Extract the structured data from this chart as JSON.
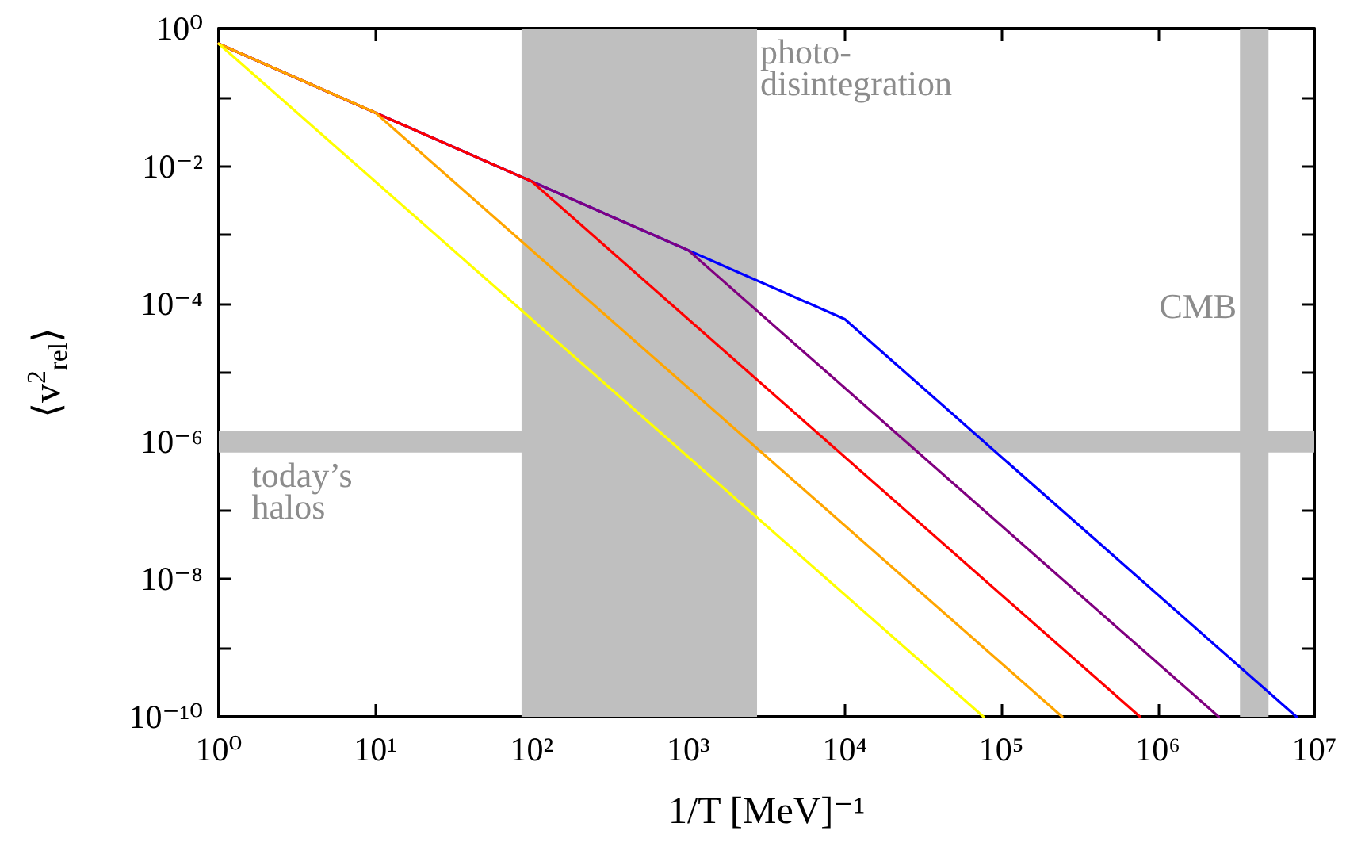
{
  "chart_data": {
    "type": "line",
    "xlabel": "1/T [MeV]⁻¹",
    "ylabel": "⟨v$^{2}$$_{rel}$⟩",
    "log": "xy",
    "grid": false,
    "marker": "none",
    "line_style": "solid",
    "xlim": [
      1,
      10000000
    ],
    "ylim": [
      1e-10,
      1
    ],
    "xticks": [
      {
        "value": 1,
        "label": "10⁰"
      },
      {
        "value": 10,
        "label": "10¹"
      },
      {
        "value": 100,
        "label": "10²"
      },
      {
        "value": 1000,
        "label": "10³"
      },
      {
        "value": 10000,
        "label": "10⁴"
      },
      {
        "value": 100000,
        "label": "10⁵"
      },
      {
        "value": 1000000,
        "label": "10⁶"
      },
      {
        "value": 10000000,
        "label": "10⁷"
      }
    ],
    "yticks": [
      {
        "value": 1e-10,
        "label": "10⁻¹⁰"
      },
      {
        "value": 1e-09,
        "label": null
      },
      {
        "value": 1e-08,
        "label": "10⁻⁸"
      },
      {
        "value": 1e-07,
        "label": null
      },
      {
        "value": 1e-06,
        "label": "10⁻⁶"
      },
      {
        "value": 1e-05,
        "label": null
      },
      {
        "value": 0.0001,
        "label": "10⁻⁴"
      },
      {
        "value": 0.001,
        "label": null
      },
      {
        "value": 0.01,
        "label": "10⁻²"
      },
      {
        "value": 0.1,
        "label": null
      },
      {
        "value": 1,
        "label": "10⁰"
      }
    ],
    "series": [
      {
        "color": "#ffff00",
        "x": [
          1,
          77000
        ],
        "values": [
          0.6,
          1e-10
        ]
      },
      {
        "color": "#ffa500",
        "x": [
          1,
          10,
          245000
        ],
        "values": [
          0.6,
          0.06,
          1e-10
        ]
      },
      {
        "color": "#ff0000",
        "x": [
          1,
          100,
          770000
        ],
        "values": [
          0.6,
          0.006,
          1e-10
        ]
      },
      {
        "color": "#800080",
        "x": [
          1,
          1000,
          2450000
        ],
        "values": [
          0.6,
          0.0006,
          1e-10
        ]
      },
      {
        "color": "#0000ff",
        "x": [
          1,
          10000,
          7700000
        ],
        "values": [
          0.6,
          6e-05,
          1e-10
        ]
      }
    ],
    "bands": [
      {
        "axis": "x",
        "from": 86,
        "to": 2750,
        "label": "photo-\ndisintegration",
        "color": "#bfbfbf"
      },
      {
        "axis": "x",
        "from": 3350000,
        "to": 5100000,
        "label": "CMB",
        "color": "#bfbfbf"
      },
      {
        "axis": "y",
        "from": 6.9e-07,
        "to": 1.4e-06,
        "label": "today’s\nhalos",
        "color": "#bfbfbf"
      }
    ]
  }
}
